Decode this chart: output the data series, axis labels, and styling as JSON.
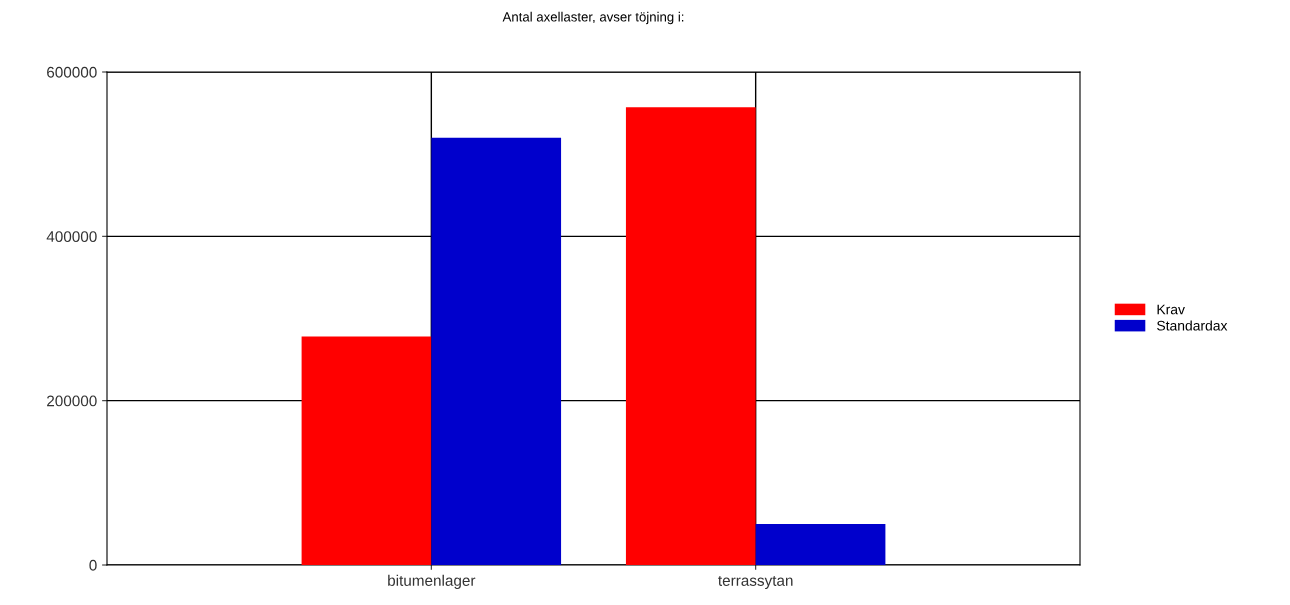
{
  "chart_data": {
    "type": "bar",
    "title": "Antal axellaster, avser töjning i:",
    "categories": [
      "bitumenlager",
      "terrassytan"
    ],
    "series": [
      {
        "name": "Krav",
        "color": "#ff0000",
        "values": [
          278000,
          557000
        ]
      },
      {
        "name": "Standardax",
        "color": "#0000cc",
        "values": [
          520000,
          50000
        ]
      }
    ],
    "ylim": [
      0,
      600000
    ],
    "yticks": [
      0,
      200000,
      400000,
      600000
    ],
    "grid": true,
    "legend": "right"
  }
}
